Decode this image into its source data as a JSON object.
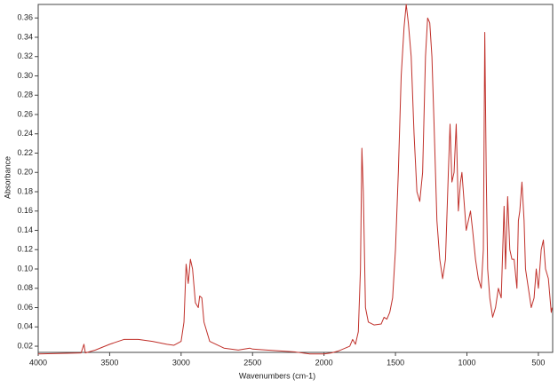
{
  "chart_data": {
    "type": "line",
    "x_label": "Wavenumbers (cm-1)",
    "y_label": "Absorbance",
    "xlim": [
      4000,
      400
    ],
    "ylim": [
      0.0136,
      0.374
    ],
    "xticks": [
      4000,
      3500,
      3000,
      2500,
      2000,
      1500,
      1000,
      500
    ],
    "yticks": [
      0.02,
      0.04,
      0.06,
      0.08,
      {
        "value": 0.1,
        "label": "0.10"
      },
      0.12,
      0.14,
      0.16,
      0.18,
      {
        "value": 0.2,
        "label": "0.20"
      },
      0.22,
      0.24,
      0.26,
      0.28,
      {
        "value": 0.3,
        "label": "0.30"
      },
      0.32,
      0.34,
      0.36
    ],
    "series": [
      {
        "color": "#c0302a",
        "x": [
          4000,
          3700,
          3680,
          3670,
          3600,
          3500,
          3400,
          3300,
          3200,
          3100,
          3050,
          3000,
          2980,
          2965,
          2950,
          2935,
          2920,
          2900,
          2880,
          2870,
          2855,
          2840,
          2800,
          2700,
          2600,
          2520,
          2500,
          2400,
          2200,
          2100,
          2000,
          1950,
          1900,
          1820,
          1800,
          1780,
          1760,
          1745,
          1735,
          1725,
          1710,
          1690,
          1650,
          1600,
          1580,
          1560,
          1540,
          1520,
          1500,
          1480,
          1460,
          1440,
          1425,
          1410,
          1390,
          1370,
          1350,
          1330,
          1310,
          1290,
          1275,
          1260,
          1245,
          1230,
          1210,
          1190,
          1170,
          1150,
          1130,
          1118,
          1105,
          1090,
          1075,
          1060,
          1045,
          1035,
          1020,
          1005,
          990,
          975,
          960,
          940,
          920,
          900,
          885,
          875,
          865,
          855,
          840,
          820,
          800,
          780,
          760,
          740,
          730,
          715,
          700,
          685,
          670,
          650,
          640,
          630,
          615,
          600,
          590,
          570,
          550,
          530,
          515,
          500,
          480,
          465,
          450,
          430,
          410,
          404
        ],
        "values": [
          0.012,
          0.013,
          0.022,
          0.013,
          0.016,
          0.022,
          0.027,
          0.027,
          0.025,
          0.022,
          0.021,
          0.025,
          0.045,
          0.105,
          0.085,
          0.11,
          0.1,
          0.065,
          0.06,
          0.072,
          0.07,
          0.045,
          0.025,
          0.018,
          0.016,
          0.018,
          0.017,
          0.016,
          0.014,
          0.012,
          0.012,
          0.013,
          0.015,
          0.02,
          0.027,
          0.022,
          0.035,
          0.1,
          0.225,
          0.18,
          0.06,
          0.045,
          0.042,
          0.043,
          0.05,
          0.048,
          0.055,
          0.07,
          0.12,
          0.2,
          0.3,
          0.35,
          0.374,
          0.355,
          0.32,
          0.24,
          0.18,
          0.17,
          0.2,
          0.32,
          0.36,
          0.355,
          0.32,
          0.25,
          0.15,
          0.11,
          0.09,
          0.11,
          0.2,
          0.25,
          0.19,
          0.2,
          0.25,
          0.16,
          0.19,
          0.2,
          0.17,
          0.14,
          0.15,
          0.16,
          0.14,
          0.11,
          0.09,
          0.08,
          0.12,
          0.345,
          0.2,
          0.1,
          0.07,
          0.05,
          0.06,
          0.08,
          0.07,
          0.165,
          0.1,
          0.175,
          0.12,
          0.11,
          0.11,
          0.08,
          0.15,
          0.16,
          0.19,
          0.15,
          0.1,
          0.08,
          0.06,
          0.07,
          0.1,
          0.08,
          0.12,
          0.13,
          0.1,
          0.09,
          0.055,
          0.06
        ]
      }
    ]
  }
}
